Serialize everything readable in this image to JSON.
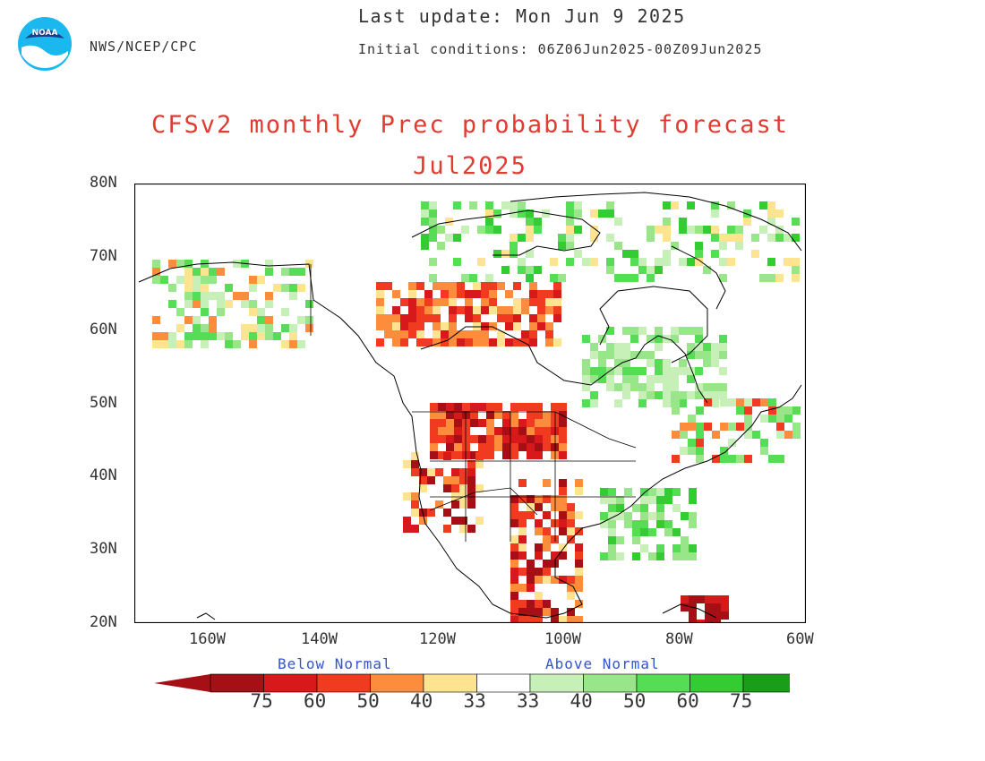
{
  "header": {
    "agency": "NWS/NCEP/CPC",
    "last_update": "Last update: Mon Jun 9 2025",
    "initial_conditions": "Initial conditions: 06Z06Jun2025-00Z09Jun2025",
    "logo_text": "NOAA"
  },
  "map": {
    "title": "CFSv2 monthly Prec probability forecast",
    "subtitle": "Jul2025",
    "lat_labels": [
      "80N",
      "70N",
      "60N",
      "50N",
      "40N",
      "30N",
      "20N"
    ],
    "lon_labels": [
      "160W",
      "140W",
      "120W",
      "100W",
      "80W",
      "60W"
    ],
    "lat_range": [
      20,
      80
    ],
    "lon_range": [
      -170,
      -60
    ]
  },
  "legend": {
    "below_label": "Below Normal",
    "above_label": "Above Normal",
    "thresholds": [
      "75",
      "60",
      "50",
      "40",
      "33",
      "33",
      "40",
      "50",
      "60",
      "75"
    ],
    "below_colors": [
      "#a50f15",
      "#d7191c",
      "#f03b20",
      "#fd8d3c",
      "#fee391"
    ],
    "neutral_color": "#ffffff",
    "above_colors": [
      "#c7f0b8",
      "#99e68a",
      "#55dd55",
      "#33cc33",
      "#1a9e1a"
    ]
  }
}
